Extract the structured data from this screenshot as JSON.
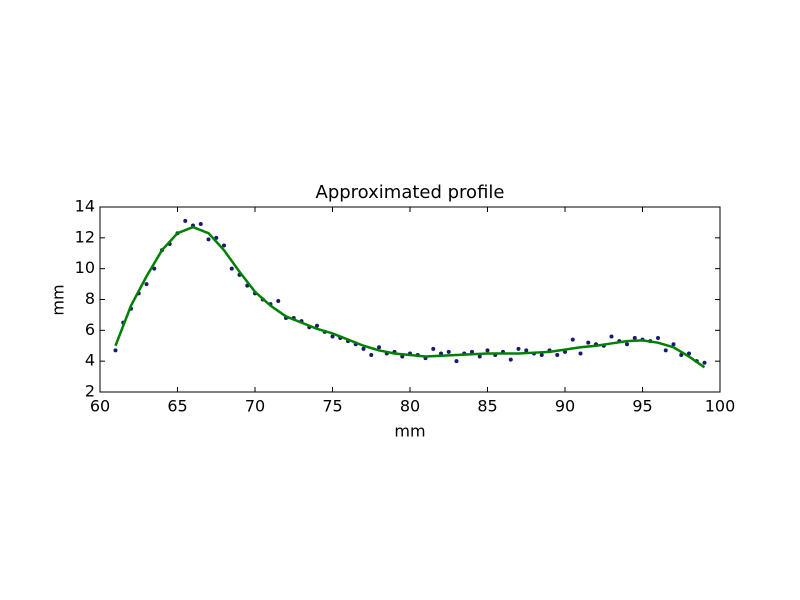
{
  "chart_data": {
    "type": "scatter",
    "title": "Approximated profile",
    "x_label": "mm",
    "y_label": "mm",
    "xlim": [
      60,
      100
    ],
    "xticks": [
      60,
      65,
      70,
      75,
      80,
      85,
      90,
      95,
      100
    ],
    "ylim": [
      2,
      14
    ],
    "yticks": [
      2,
      4,
      6,
      8,
      10,
      12,
      14
    ],
    "grid": false,
    "series": [
      {
        "style": "points",
        "color": "#191970",
        "x": [
          61,
          61.5,
          62,
          62.5,
          63,
          63.5,
          64,
          64.5,
          65,
          65.5,
          66,
          66.5,
          67,
          67.5,
          68,
          68.5,
          69,
          69.5,
          70,
          70.5,
          71,
          71.5,
          72,
          72.5,
          73,
          73.5,
          74,
          74.5,
          75,
          75.5,
          76,
          76.5,
          77,
          77.5,
          78,
          78.5,
          79,
          79.5,
          80,
          80.5,
          81,
          81.5,
          82,
          82.5,
          83,
          83.5,
          84,
          84.5,
          85,
          85.5,
          86,
          86.5,
          87,
          87.5,
          88,
          88.5,
          89,
          89.5,
          90,
          90.5,
          91,
          91.5,
          92,
          92.5,
          93,
          93.5,
          94,
          94.5,
          95,
          95.5,
          96,
          96.5,
          97,
          97.5,
          98,
          98.5,
          99
        ],
        "values": [
          4.7,
          6.5,
          7.4,
          8.4,
          9.0,
          10.0,
          11.2,
          11.6,
          12.3,
          13.1,
          12.8,
          12.9,
          11.9,
          12.0,
          11.5,
          10.0,
          9.6,
          8.9,
          8.4,
          8.0,
          7.7,
          7.9,
          6.8,
          6.8,
          6.6,
          6.2,
          6.3,
          5.9,
          5.6,
          5.5,
          5.3,
          5.1,
          4.8,
          4.4,
          4.9,
          4.5,
          4.6,
          4.3,
          4.5,
          4.4,
          4.2,
          4.8,
          4.5,
          4.6,
          4.0,
          4.5,
          4.6,
          4.3,
          4.7,
          4.4,
          4.6,
          4.1,
          4.8,
          4.7,
          4.5,
          4.4,
          4.7,
          4.4,
          4.6,
          5.4,
          4.5,
          5.2,
          5.1,
          5.0,
          5.6,
          5.3,
          5.1,
          5.5,
          5.4,
          5.3,
          5.5,
          4.7,
          5.1,
          4.4,
          4.5,
          4.0,
          3.9
        ]
      },
      {
        "style": "line",
        "color": "#008000",
        "x": [
          61,
          62,
          63,
          64,
          65,
          66,
          67,
          68,
          69,
          70,
          71,
          72,
          73,
          74,
          75,
          76,
          77,
          78,
          79,
          80,
          81,
          82,
          83,
          84,
          85,
          86,
          87,
          88,
          89,
          90,
          91,
          92,
          93,
          94,
          95,
          96,
          97,
          98,
          99
        ],
        "values": [
          5.0,
          7.6,
          9.5,
          11.2,
          12.3,
          12.7,
          12.3,
          11.2,
          9.8,
          8.5,
          7.6,
          6.9,
          6.5,
          6.1,
          5.8,
          5.4,
          5.0,
          4.7,
          4.5,
          4.4,
          4.3,
          4.35,
          4.4,
          4.45,
          4.5,
          4.5,
          4.5,
          4.55,
          4.6,
          4.75,
          4.9,
          5.0,
          5.15,
          5.3,
          5.35,
          5.2,
          4.9,
          4.3,
          3.6
        ]
      }
    ]
  }
}
